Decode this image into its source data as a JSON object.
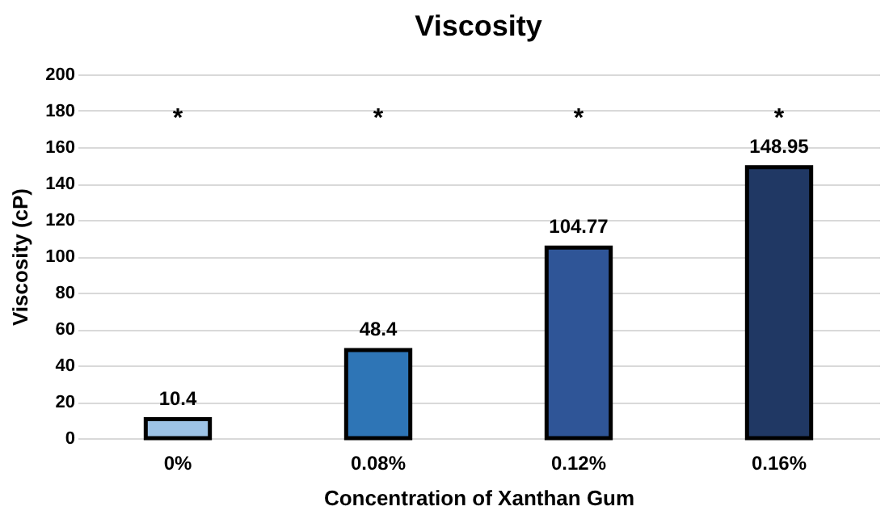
{
  "chart_data": {
    "type": "bar",
    "title": "Viscosity",
    "xlabel": "Concentration of Xanthan Gum",
    "ylabel": "Viscosity (cP)",
    "categories": [
      "0%",
      "0.08%",
      "0.12%",
      "0.16%"
    ],
    "values": [
      10.4,
      48.4,
      104.77,
      148.95
    ],
    "colors": [
      "#9dc3e6",
      "#2e75b6",
      "#2f5597",
      "#203864"
    ],
    "ylim": [
      0,
      200
    ],
    "yticks": [
      0,
      20,
      40,
      60,
      80,
      100,
      120,
      140,
      160,
      180,
      200
    ],
    "grid": "y",
    "data_labels": true,
    "annotations": [
      "*",
      "*",
      "*",
      "*"
    ]
  }
}
